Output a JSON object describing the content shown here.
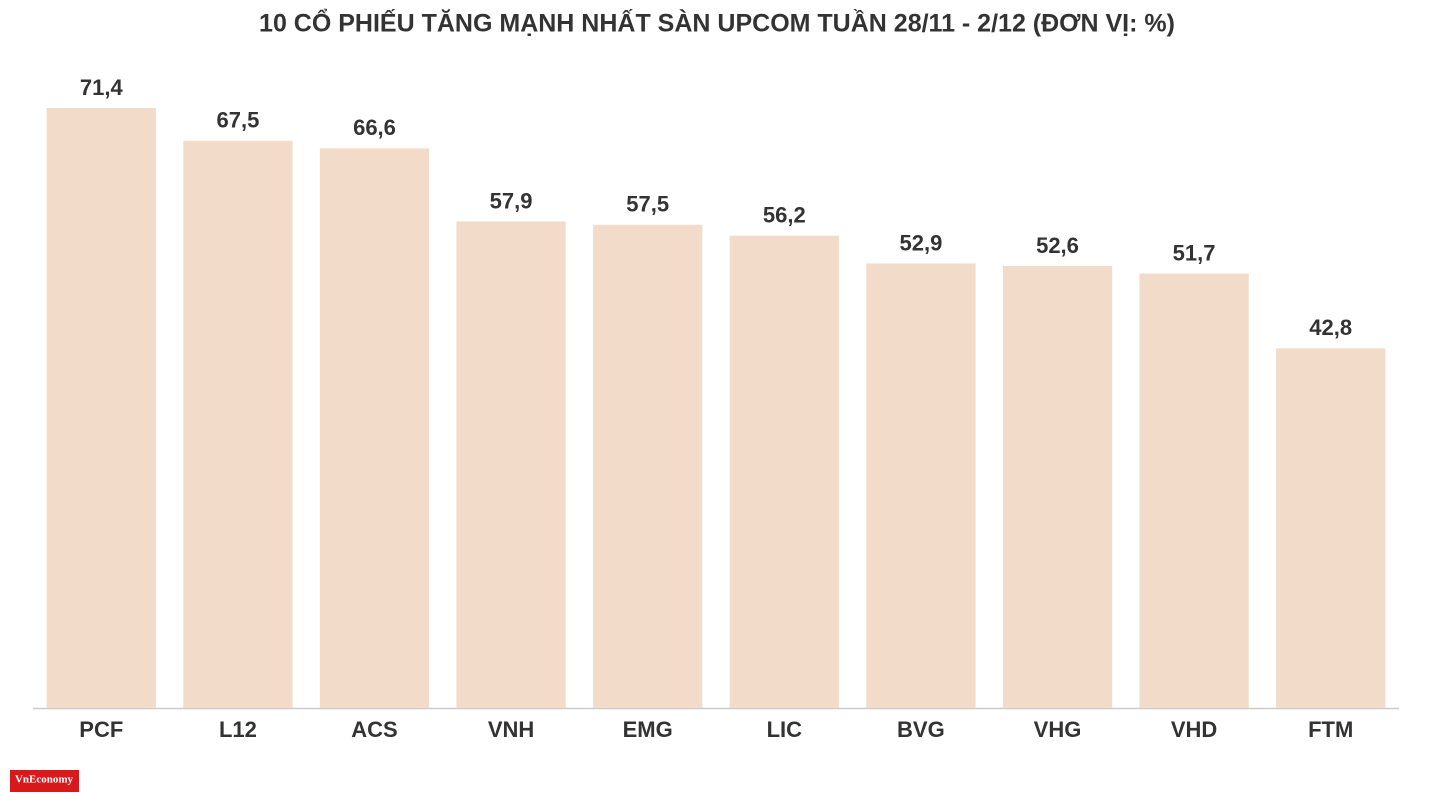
{
  "chart_data": {
    "type": "bar",
    "title": "10 CỔ PHIẾU TĂNG MẠNH NHẤT SÀN UPCOM TUẦN 28/11 - 2/12 (ĐƠN VỊ: %)",
    "categories": [
      "PCF",
      "L12",
      "ACS",
      "VNH",
      "EMG",
      "LIC",
      "BVG",
      "VHG",
      "VHD",
      "FTM"
    ],
    "values": [
      71.4,
      67.5,
      66.6,
      57.9,
      57.5,
      56.2,
      52.9,
      52.6,
      51.7,
      42.8
    ],
    "value_labels": [
      "71,4",
      "67,5",
      "66,6",
      "57,9",
      "57,5",
      "56,2",
      "52,9",
      "52,6",
      "51,7",
      "42,8"
    ],
    "color": "#f2dcc9"
  },
  "logo": "VnEconomy"
}
